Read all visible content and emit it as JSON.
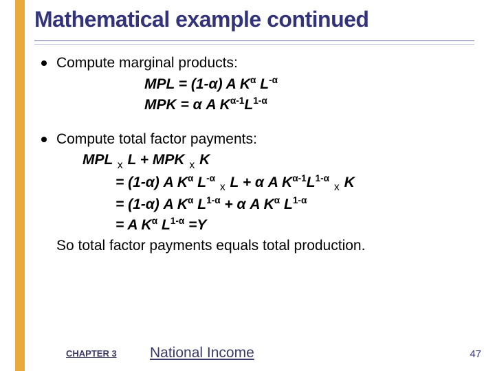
{
  "title": "Mathematical example continued",
  "bullet1": "Compute marginal products:",
  "mpl": "MPL = (1-α) A K",
  "mpl_sup1": "α",
  "mpl_mid": " L",
  "mpl_sup2": "-α",
  "mpk": "MPK = α A K",
  "mpk_sup1": "α-1",
  "mpk_mid": "L",
  "mpk_sup2": "1-α",
  "bullet2": "Compute total factor payments:",
  "line1a": "MPL ",
  "line1b": " L  +  MPK ",
  "line1c": " K",
  "line2a": "= (1-α) A K",
  "line2b": " L",
  "line2c": " ",
  "line2d": " L   +  α A K",
  "line2e": "L",
  "line2f": " ",
  "line2g": " K",
  "line3a": "= (1-α) A K",
  "line3b": " L",
  "line3c": "   +  α A K",
  "line3d": " L",
  "line4a": "= A K",
  "line4b": " L",
  "line4c": " =Y",
  "sup_a": "α",
  "sup_ma": "-α",
  "sup_am1": "α-1",
  "sup_1ma": "1-α",
  "x": "x",
  "conclusion": "So total factor payments equals total production.",
  "chapter": "CHAPTER 3",
  "footer_title": "National Income",
  "page": "47",
  "colors": {
    "title": "#33337a",
    "bar": "#e8aa3a",
    "text": "#000000",
    "footer": "#3a3a66"
  }
}
